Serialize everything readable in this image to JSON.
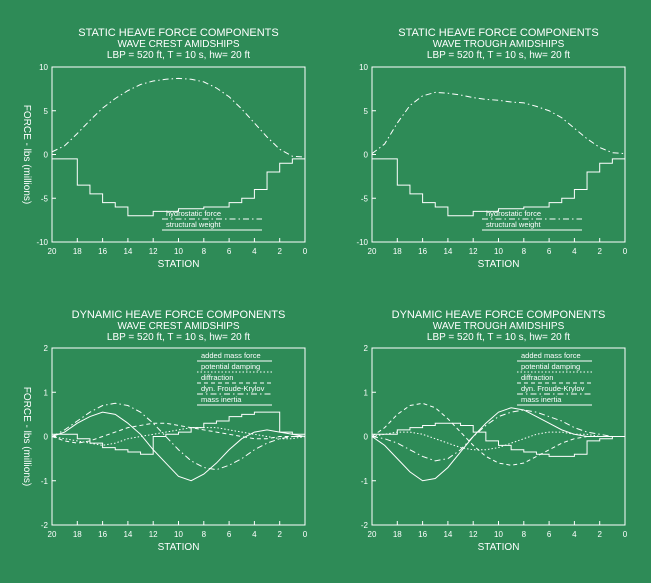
{
  "figure": {
    "background": "#2e8b57",
    "ink": "#ffffff",
    "ylabel": "FORCE - lbs (millions)"
  },
  "chart_data": [
    {
      "type": "line",
      "title": "STATIC HEAVE FORCE COMPONENTS",
      "subtitle": "WAVE CREST AMIDSHIPS",
      "params": "LBP = 520 ft, T = 10 s, hw= 20 ft",
      "xlabel": "STATION",
      "ylabel": "FORCE - lbs (millions)",
      "xlim": [
        20,
        0
      ],
      "ylim": [
        -10,
        10
      ],
      "xticks": [
        "20",
        "18",
        "16",
        "14",
        "12",
        "10",
        "8",
        "6",
        "4",
        "2",
        "0"
      ],
      "yticks": [
        "10",
        "5",
        "0",
        "-5",
        "-10"
      ],
      "series": [
        {
          "name": "hydrostatic force",
          "style": "dashdot",
          "step": false,
          "x": [
            20,
            19,
            18,
            17,
            16,
            15,
            14,
            13,
            12,
            11,
            10,
            9,
            8,
            7,
            6,
            5,
            4,
            3,
            2,
            1,
            0
          ],
          "y": [
            0.3,
            1.0,
            2.4,
            3.9,
            5.3,
            6.4,
            7.3,
            8.0,
            8.4,
            8.6,
            8.7,
            8.6,
            8.3,
            7.6,
            6.6,
            5.2,
            3.6,
            2.0,
            0.6,
            -0.2,
            -0.3
          ]
        },
        {
          "name": "structural weight",
          "style": "solid",
          "step": true,
          "x": [
            20,
            19,
            18,
            17,
            16,
            15,
            14,
            13,
            12,
            11,
            10,
            9,
            8,
            7,
            6,
            5,
            4,
            3,
            2,
            1,
            0
          ],
          "y": [
            -0.5,
            -0.5,
            -3.5,
            -4.5,
            -5.5,
            -6.0,
            -7.0,
            -7.0,
            -6.5,
            -6.5,
            -6.2,
            -6.2,
            -6.0,
            -6.0,
            -5.5,
            -5.0,
            -4.0,
            -2.0,
            -1.0,
            -0.5,
            -0.5
          ]
        }
      ]
    },
    {
      "type": "line",
      "title": "STATIC HEAVE FORCE COMPONENTS",
      "subtitle": "WAVE TROUGH AMIDSHIPS",
      "params": "LBP = 520 ft, T = 10 s, hw= 20 ft",
      "xlabel": "STATION",
      "xlim": [
        20,
        0
      ],
      "ylim": [
        -10,
        10
      ],
      "xticks": [
        "20",
        "18",
        "16",
        "14",
        "12",
        "10",
        "8",
        "6",
        "4",
        "2",
        "0"
      ],
      "yticks": [
        "10",
        "5",
        "0",
        "-5",
        "-10"
      ],
      "series": [
        {
          "name": "hydrostatic force",
          "style": "dashdot",
          "step": false,
          "x": [
            20,
            19,
            18,
            17,
            16,
            15,
            14,
            13,
            12,
            11,
            10,
            9,
            8,
            7,
            6,
            5,
            4,
            3,
            2,
            1,
            0
          ],
          "y": [
            0.1,
            1.2,
            3.6,
            5.6,
            6.7,
            7.1,
            7.0,
            6.8,
            6.5,
            6.3,
            6.2,
            6.0,
            5.9,
            5.5,
            5.0,
            4.2,
            3.0,
            1.8,
            0.8,
            0.2,
            0.1
          ]
        },
        {
          "name": "structural weight",
          "style": "solid",
          "step": true,
          "x": [
            20,
            19,
            18,
            17,
            16,
            15,
            14,
            13,
            12,
            11,
            10,
            9,
            8,
            7,
            6,
            5,
            4,
            3,
            2,
            1,
            0
          ],
          "y": [
            -0.5,
            -0.5,
            -3.5,
            -4.5,
            -5.5,
            -6.0,
            -7.0,
            -7.0,
            -6.5,
            -6.5,
            -6.2,
            -6.2,
            -6.0,
            -6.0,
            -5.5,
            -5.0,
            -4.0,
            -2.0,
            -1.0,
            -0.5,
            -0.5
          ]
        }
      ]
    },
    {
      "type": "line",
      "title": "DYNAMIC HEAVE FORCE COMPONENTS",
      "subtitle": "WAVE CREST AMIDSHIPS",
      "params": "LBP = 520 ft, T = 10 s, hw= 20 ft",
      "xlabel": "STATION",
      "ylabel": "FORCE - lbs (millions)",
      "xlim": [
        20,
        0
      ],
      "ylim": [
        -2,
        2
      ],
      "xticks": [
        "20",
        "18",
        "16",
        "14",
        "12",
        "10",
        "8",
        "6",
        "4",
        "2",
        "0"
      ],
      "yticks": [
        "2",
        "1",
        "0",
        "-1",
        "-2"
      ],
      "series": [
        {
          "name": "added mass force",
          "style": "solid",
          "step": false,
          "x": [
            20,
            19,
            18,
            17,
            16,
            15,
            14,
            13,
            12,
            11,
            10,
            9,
            8,
            7,
            6,
            5,
            4,
            3,
            2,
            1,
            0
          ],
          "y": [
            0.0,
            0.1,
            0.3,
            0.45,
            0.55,
            0.5,
            0.3,
            0.05,
            -0.3,
            -0.6,
            -0.9,
            -1.0,
            -0.85,
            -0.6,
            -0.3,
            -0.05,
            0.1,
            0.15,
            0.1,
            0.05,
            0.0
          ]
        },
        {
          "name": "potential damping",
          "style": "dotted",
          "step": false,
          "x": [
            20,
            19,
            18,
            17,
            16,
            15,
            14,
            13,
            12,
            11,
            10,
            9,
            8,
            7,
            6,
            5,
            4,
            3,
            2,
            1,
            0
          ],
          "y": [
            0.0,
            -0.05,
            -0.1,
            -0.15,
            -0.2,
            -0.15,
            -0.05,
            0.0,
            0.05,
            0.1,
            0.15,
            0.2,
            0.2,
            0.2,
            0.15,
            0.1,
            0.05,
            0.0,
            -0.05,
            -0.05,
            0.0
          ]
        },
        {
          "name": "diffraction",
          "style": "dashed",
          "step": false,
          "x": [
            20,
            19,
            18,
            17,
            16,
            15,
            14,
            13,
            12,
            11,
            10,
            9,
            8,
            7,
            6,
            5,
            4,
            3,
            2,
            1,
            0
          ],
          "y": [
            0.0,
            -0.1,
            -0.15,
            -0.1,
            0.0,
            0.1,
            0.2,
            0.25,
            0.3,
            0.3,
            0.25,
            0.2,
            0.15,
            0.1,
            0.05,
            0.0,
            -0.05,
            -0.05,
            0.0,
            0.0,
            0.0
          ]
        },
        {
          "name": "dyn. Froude-Krylov",
          "style": "dashdot",
          "step": false,
          "x": [
            20,
            19,
            18,
            17,
            16,
            15,
            14,
            13,
            12,
            11,
            10,
            9,
            8,
            7,
            6,
            5,
            4,
            3,
            2,
            1,
            0
          ],
          "y": [
            0.0,
            0.15,
            0.35,
            0.55,
            0.7,
            0.75,
            0.7,
            0.55,
            0.3,
            0.0,
            -0.3,
            -0.55,
            -0.7,
            -0.75,
            -0.65,
            -0.5,
            -0.3,
            -0.15,
            -0.05,
            0.0,
            0.0
          ]
        },
        {
          "name": "mass inertia",
          "style": "solid",
          "step": true,
          "x": [
            20,
            19,
            18,
            17,
            16,
            15,
            14,
            13,
            12,
            11,
            10,
            9,
            8,
            7,
            6,
            5,
            4,
            3,
            2,
            1,
            0
          ],
          "y": [
            0.05,
            0.05,
            -0.05,
            -0.15,
            -0.25,
            -0.3,
            -0.35,
            -0.4,
            0.0,
            0.05,
            0.1,
            0.2,
            0.3,
            0.35,
            0.45,
            0.5,
            0.55,
            0.55,
            0.1,
            0.05,
            0.0
          ]
        }
      ]
    },
    {
      "type": "line",
      "title": "DYNAMIC HEAVE FORCE COMPONENTS",
      "subtitle": "WAVE TROUGH AMIDSHIPS",
      "params": "LBP = 520 ft, T = 10 s, hw= 20 ft",
      "xlabel": "STATION",
      "xlim": [
        20,
        0
      ],
      "ylim": [
        -2,
        2
      ],
      "xticks": [
        "20",
        "18",
        "16",
        "14",
        "12",
        "10",
        "8",
        "6",
        "4",
        "2",
        "0"
      ],
      "yticks": [
        "2",
        "1",
        "0",
        "-1",
        "-2"
      ],
      "series": [
        {
          "name": "added mass force",
          "style": "solid",
          "step": false,
          "x": [
            20,
            19,
            18,
            17,
            16,
            15,
            14,
            13,
            12,
            11,
            10,
            9,
            8,
            7,
            6,
            5,
            4,
            3,
            2,
            1,
            0
          ],
          "y": [
            0.0,
            -0.2,
            -0.5,
            -0.8,
            -1.0,
            -0.95,
            -0.7,
            -0.35,
            0.0,
            0.3,
            0.55,
            0.65,
            0.6,
            0.45,
            0.3,
            0.15,
            0.05,
            0.0,
            0.0,
            0.0,
            0.0
          ]
        },
        {
          "name": "potential damping",
          "style": "dotted",
          "step": false,
          "x": [
            20,
            19,
            18,
            17,
            16,
            15,
            14,
            13,
            12,
            11,
            10,
            9,
            8,
            7,
            6,
            5,
            4,
            3,
            2,
            1,
            0
          ],
          "y": [
            0.0,
            0.05,
            0.1,
            0.1,
            0.05,
            -0.05,
            -0.15,
            -0.25,
            -0.3,
            -0.3,
            -0.25,
            -0.15,
            -0.05,
            0.05,
            0.1,
            0.1,
            0.05,
            0.05,
            0.0,
            0.0,
            0.0
          ]
        },
        {
          "name": "diffraction",
          "style": "dashed",
          "step": false,
          "x": [
            20,
            19,
            18,
            17,
            16,
            15,
            14,
            13,
            12,
            11,
            10,
            9,
            8,
            7,
            6,
            5,
            4,
            3,
            2,
            1,
            0
          ],
          "y": [
            0.0,
            0.2,
            0.5,
            0.7,
            0.75,
            0.65,
            0.4,
            0.1,
            -0.2,
            -0.45,
            -0.6,
            -0.65,
            -0.6,
            -0.45,
            -0.3,
            -0.15,
            -0.05,
            0.0,
            0.0,
            0.0,
            0.0
          ]
        },
        {
          "name": "dyn. Froude-Krylov",
          "style": "dashdot",
          "step": false,
          "x": [
            20,
            19,
            18,
            17,
            16,
            15,
            14,
            13,
            12,
            11,
            10,
            9,
            8,
            7,
            6,
            5,
            4,
            3,
            2,
            1,
            0
          ],
          "y": [
            0.0,
            -0.05,
            -0.15,
            -0.3,
            -0.45,
            -0.55,
            -0.5,
            -0.3,
            0.0,
            0.25,
            0.45,
            0.55,
            0.6,
            0.55,
            0.45,
            0.35,
            0.2,
            0.1,
            0.05,
            0.0,
            0.0
          ]
        },
        {
          "name": "mass inertia",
          "style": "solid",
          "step": true,
          "x": [
            20,
            19,
            18,
            17,
            16,
            15,
            14,
            13,
            12,
            11,
            10,
            9,
            8,
            7,
            6,
            5,
            4,
            3,
            2,
            1,
            0
          ],
          "y": [
            0.05,
            0.05,
            0.15,
            0.2,
            0.25,
            0.3,
            0.3,
            0.25,
            0.1,
            -0.1,
            -0.2,
            -0.3,
            -0.35,
            -0.4,
            -0.45,
            -0.45,
            -0.4,
            -0.1,
            -0.05,
            0.0,
            0.0
          ]
        }
      ]
    }
  ]
}
